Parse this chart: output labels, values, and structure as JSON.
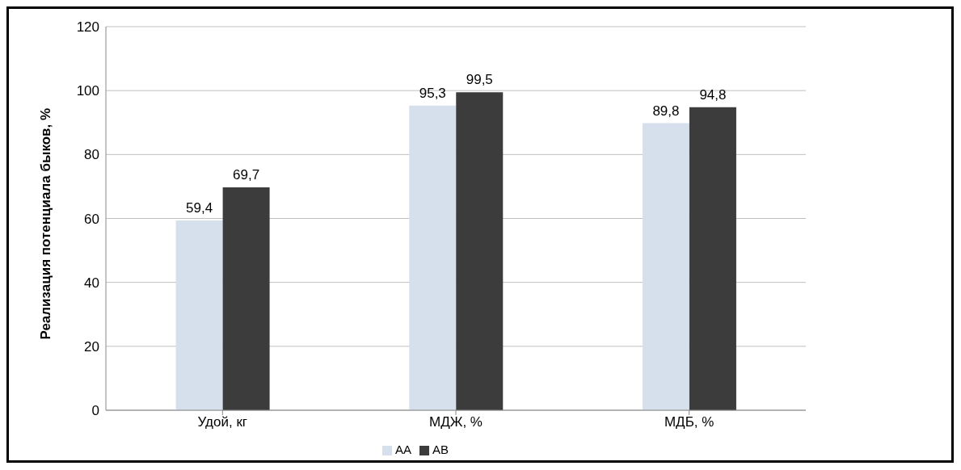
{
  "chart_data": {
    "type": "bar",
    "ylabel": "Реализация потенциала быков, %",
    "categories": [
      "Удой, кг",
      "МДЖ, %",
      "МДБ, %"
    ],
    "series": [
      {
        "name": "АА",
        "color": "#d6e0ec",
        "values": [
          59.4,
          95.3,
          89.8
        ],
        "value_labels": [
          "59,4",
          "95,3",
          "89,8"
        ]
      },
      {
        "name": "АВ",
        "color": "#3c3c3c",
        "values": [
          69.7,
          99.5,
          94.8
        ],
        "value_labels": [
          "69,7",
          "99,5",
          "94,8"
        ]
      }
    ],
    "ylim": [
      0,
      120
    ],
    "yticks": [
      0,
      20,
      40,
      60,
      80,
      100,
      120
    ],
    "grid": "y",
    "legend": "bottom"
  }
}
